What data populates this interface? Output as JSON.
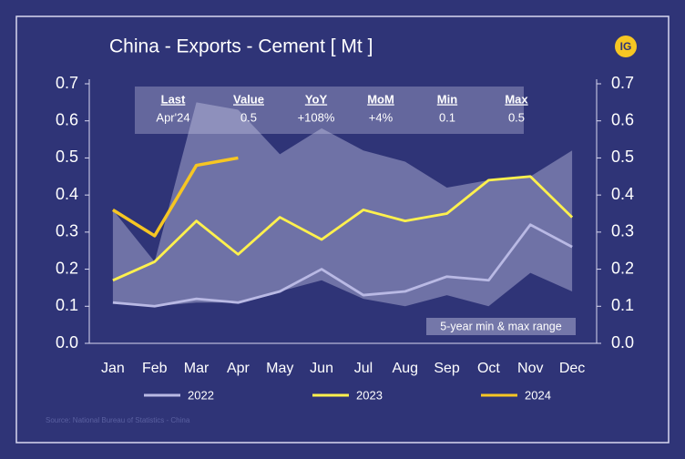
{
  "chart_data": {
    "type": "line",
    "title": "China - Exports - Cement [ Mt ]",
    "logo": "IG",
    "source": "Source: National Bureau of Statistics - China",
    "categories": [
      "Jan",
      "Feb",
      "Mar",
      "Apr",
      "May",
      "Jun",
      "Jul",
      "Aug",
      "Sep",
      "Oct",
      "Nov",
      "Dec"
    ],
    "series": [
      {
        "name": "2022",
        "color": "#b9b9e4",
        "values": [
          0.11,
          0.1,
          0.12,
          0.11,
          0.14,
          0.2,
          0.13,
          0.14,
          0.18,
          0.17,
          0.32,
          0.26
        ]
      },
      {
        "name": "2023",
        "color": "#fff14d",
        "values": [
          0.17,
          0.22,
          0.33,
          0.24,
          0.34,
          0.28,
          0.36,
          0.33,
          0.35,
          0.44,
          0.45,
          0.34
        ]
      },
      {
        "name": "2024",
        "color": "#f6c623",
        "values": [
          0.36,
          0.29,
          0.48,
          0.5,
          null,
          null,
          null,
          null,
          null,
          null,
          null,
          null
        ]
      }
    ],
    "band": {
      "name": "5-year min & max range",
      "color": "#c9c9e6",
      "max": [
        0.36,
        0.22,
        0.65,
        0.63,
        0.51,
        0.58,
        0.52,
        0.49,
        0.42,
        0.44,
        0.45,
        0.52
      ],
      "min": [
        0.11,
        0.1,
        0.11,
        0.11,
        0.14,
        0.17,
        0.12,
        0.1,
        0.13,
        0.1,
        0.19,
        0.14
      ]
    },
    "stats": {
      "headers": [
        "Last",
        "Value",
        "YoY",
        "MoM",
        "Min",
        "Max"
      ],
      "values": [
        "Apr'24",
        "0.5",
        "+108%",
        "+4%",
        "0.1",
        "0.5"
      ]
    },
    "ylim": [
      0,
      0.7
    ],
    "yticks": [
      {
        "value": 0,
        "label": "0.0"
      },
      0.1,
      0.2,
      0.3,
      0.4,
      0.5,
      0.6,
      0.7
    ],
    "y2lim": [
      0,
      0.7
    ],
    "y2ticks": [
      {
        "value": 0,
        "label": "0.0"
      },
      0.1,
      0.2,
      0.3,
      0.4,
      0.5,
      0.6,
      0.7
    ],
    "legend": "bottom"
  }
}
